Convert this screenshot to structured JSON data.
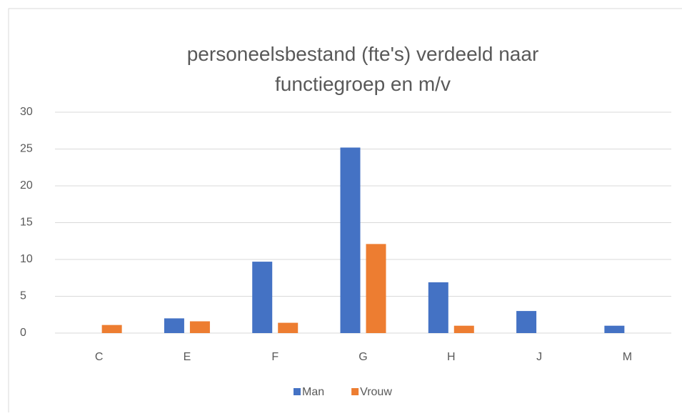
{
  "chart_data": {
    "type": "bar",
    "title": [
      "personeelsbestand (fte's) verdeeld naar",
      "functiegroep en m/v"
    ],
    "categories": [
      "C",
      "E",
      "F",
      "G",
      "H",
      "J",
      "M"
    ],
    "series": [
      {
        "name": "Man",
        "color": "#4472c4",
        "values": [
          0,
          2,
          9.7,
          25.2,
          6.9,
          3,
          1
        ]
      },
      {
        "name": "Vrouw",
        "color": "#ed7d31",
        "values": [
          1.1,
          1.6,
          1.4,
          12.1,
          1,
          0,
          0
        ]
      }
    ],
    "ylim": [
      0,
      30
    ],
    "yticks": [
      0,
      5,
      10,
      15,
      20,
      25,
      30
    ],
    "grid": true,
    "legend": "bottom"
  }
}
